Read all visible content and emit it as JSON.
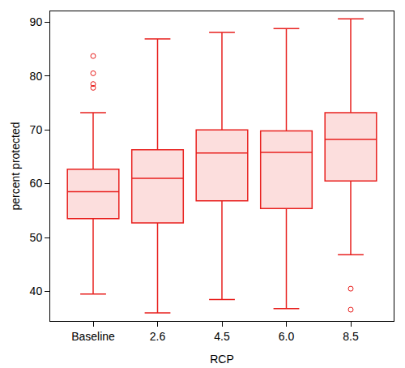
{
  "chart_data": {
    "type": "box",
    "x_label": "RCP",
    "y_label": "percent protected",
    "categories": [
      "Baseline",
      "2.6",
      "4.5",
      "6.0",
      "8.5"
    ],
    "lower_whisker": [
      39.5,
      36.0,
      38.5,
      36.8,
      46.8
    ],
    "q1": [
      53.5,
      52.7,
      56.8,
      55.4,
      60.5
    ],
    "median": [
      58.5,
      61.0,
      65.7,
      65.8,
      68.2
    ],
    "q3": [
      62.7,
      66.3,
      70.0,
      69.8,
      73.2
    ],
    "upper_whisker": [
      73.2,
      86.9,
      88.1,
      88.8,
      90.6
    ],
    "outliers": [
      [
        77.8,
        78.5,
        80.5,
        83.7
      ],
      [],
      [],
      [],
      [
        40.5,
        36.6
      ]
    ],
    "color": "#e8201e",
    "ylim": [
      34.5,
      92
    ],
    "yticks": [
      40,
      50,
      60,
      70,
      80,
      90
    ],
    "grid": false
  }
}
